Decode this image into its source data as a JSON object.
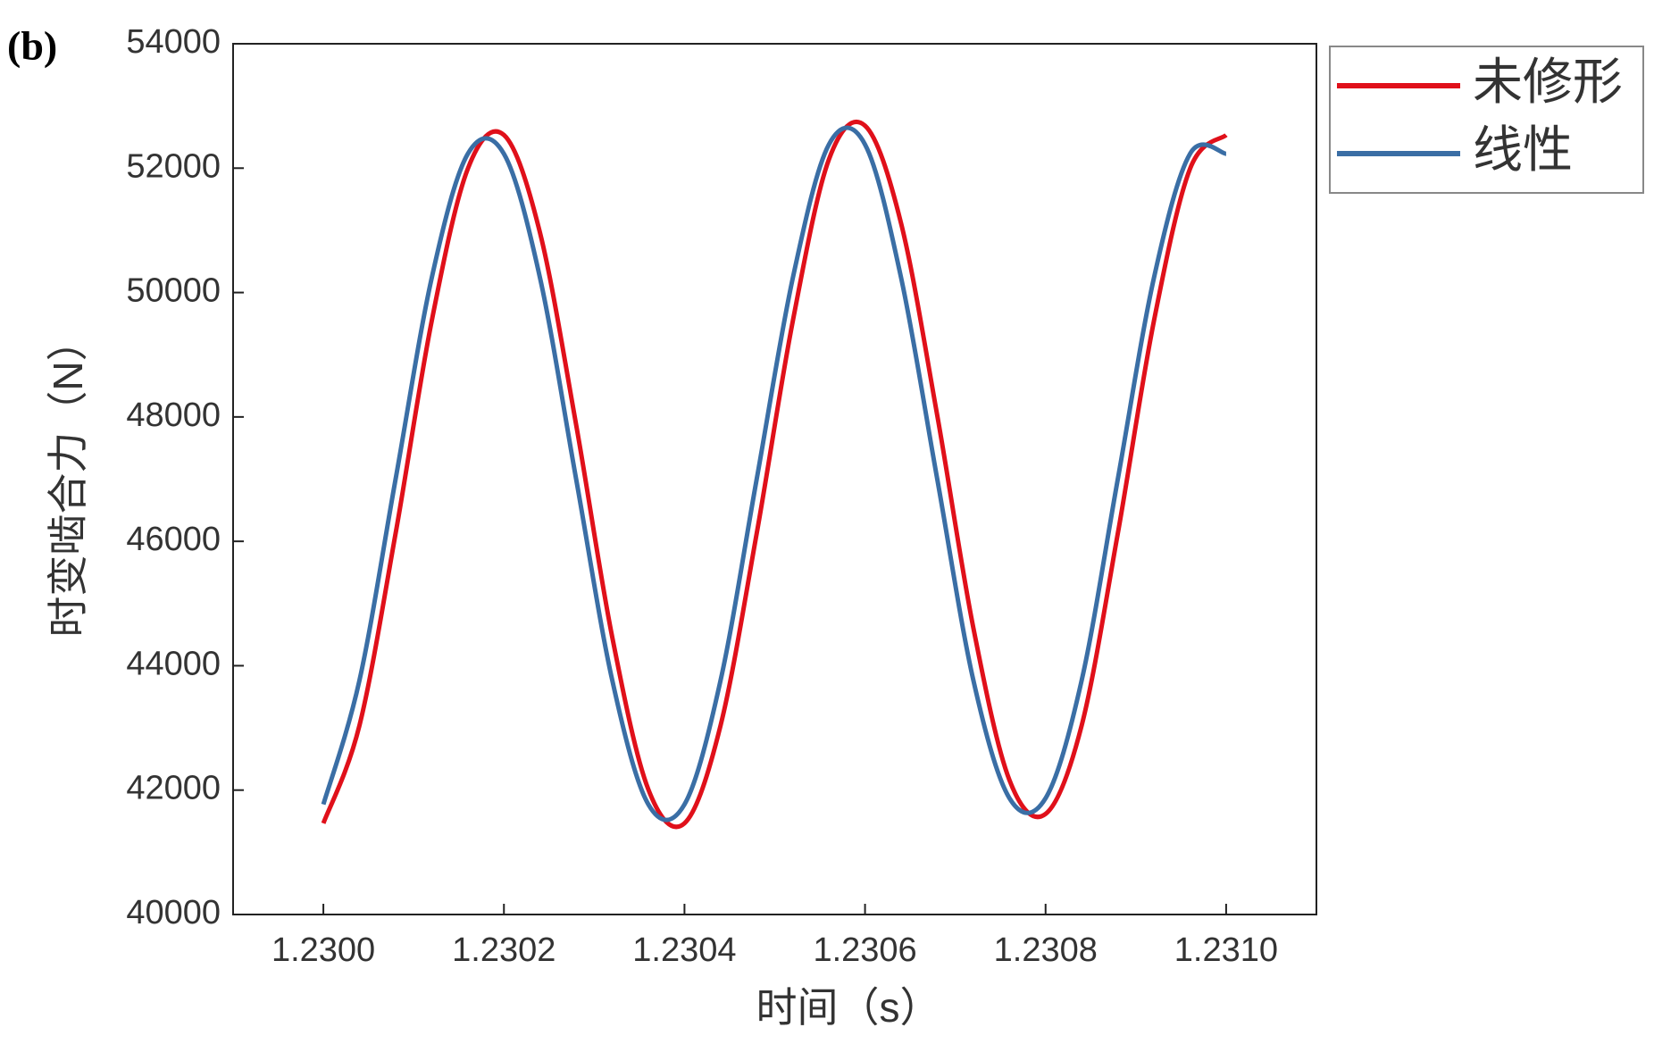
{
  "chart_data": {
    "type": "line",
    "annotation": "(b)",
    "x_label": "时间（s）",
    "y_label": "时变啮合力（N）",
    "x": [
      1.23,
      1.23004,
      1.23008,
      1.23012,
      1.23016,
      1.2302,
      1.23024,
      1.23028,
      1.23032,
      1.23036,
      1.2304,
      1.23044,
      1.23048,
      1.23052,
      1.23056,
      1.2306,
      1.23064,
      1.23068,
      1.23072,
      1.23076,
      1.2308,
      1.23084,
      1.23088,
      1.23092,
      1.23096,
      1.231
    ],
    "series": [
      {
        "name": "未修形",
        "color": "#e0101a",
        "values": [
          41467,
          43041,
          46126,
          49542,
          51990,
          52533,
          50959,
          47874,
          44458,
          42010,
          41467,
          43041,
          46126,
          49542,
          52140,
          52683,
          51109,
          48024,
          44608,
          42160,
          41617,
          43041,
          46126,
          49542,
          51990,
          52533
        ]
      },
      {
        "name": "线性",
        "color": "#3a6ea5",
        "values": [
          41770,
          43766,
          47000,
          50234,
          52231,
          52231,
          50234,
          47000,
          43766,
          41770,
          41770,
          43766,
          47000,
          50234,
          52381,
          52381,
          50234,
          47000,
          43766,
          41870,
          41870,
          43766,
          47000,
          50234,
          52231,
          52231
        ]
      }
    ],
    "xlim": [
      1.2299,
      1.2311
    ],
    "ylim": [
      40000,
      54000
    ],
    "xticks": [
      {
        "value": 1.23,
        "label": "1.2300"
      },
      {
        "value": 1.2302,
        "label": "1.2302"
      },
      {
        "value": 1.2304,
        "label": "1.2304"
      },
      {
        "value": 1.2306,
        "label": "1.2306"
      },
      {
        "value": 1.2308,
        "label": "1.2308"
      },
      {
        "value": 1.231,
        "label": "1.2310"
      }
    ],
    "yticks": [
      40000,
      42000,
      44000,
      46000,
      48000,
      50000,
      52000,
      54000
    ],
    "legend": "outside-top-right"
  }
}
